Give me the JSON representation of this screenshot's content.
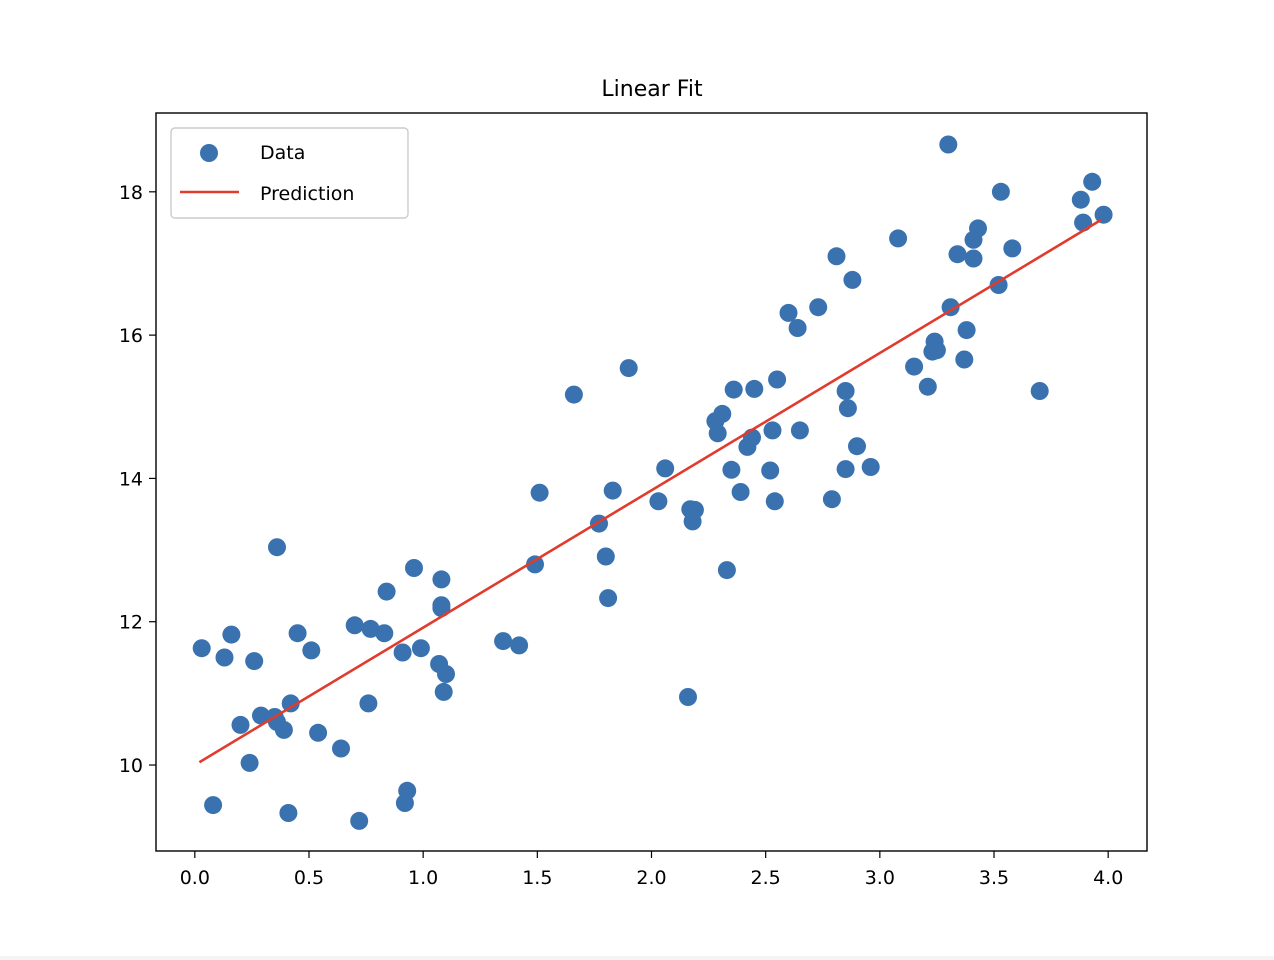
{
  "chart_data": {
    "type": "scatter",
    "title": "Linear Fit",
    "xlabel": "",
    "ylabel": "",
    "xlim": [
      -0.17,
      4.17
    ],
    "ylim": [
      8.8,
      19.1
    ],
    "xticks": [
      0.0,
      0.5,
      1.0,
      1.5,
      2.0,
      2.5,
      3.0,
      3.5,
      4.0
    ],
    "xtick_labels": [
      "0.0",
      "0.5",
      "1.0",
      "1.5",
      "2.0",
      "2.5",
      "3.0",
      "3.5",
      "4.0"
    ],
    "yticks": [
      10,
      12,
      14,
      16,
      18
    ],
    "ytick_labels": [
      "10",
      "12",
      "14",
      "16",
      "18"
    ],
    "grid": false,
    "legend": {
      "position": "upper-left",
      "entries": [
        "Data",
        "Prediction"
      ]
    },
    "series": [
      {
        "name": "Data",
        "kind": "scatter",
        "color": "#3a72b0",
        "points": [
          [
            0.03,
            11.63
          ],
          [
            0.08,
            9.44
          ],
          [
            0.13,
            11.5
          ],
          [
            0.16,
            11.82
          ],
          [
            0.2,
            10.56
          ],
          [
            0.24,
            10.03
          ],
          [
            0.26,
            11.45
          ],
          [
            0.29,
            10.69
          ],
          [
            0.35,
            10.67
          ],
          [
            0.36,
            13.04
          ],
          [
            0.36,
            10.6
          ],
          [
            0.39,
            10.49
          ],
          [
            0.41,
            9.33
          ],
          [
            0.42,
            10.86
          ],
          [
            0.45,
            11.84
          ],
          [
            0.51,
            11.6
          ],
          [
            0.54,
            10.45
          ],
          [
            0.64,
            10.23
          ],
          [
            0.7,
            11.95
          ],
          [
            0.72,
            9.22
          ],
          [
            0.76,
            10.86
          ],
          [
            0.77,
            11.9
          ],
          [
            0.83,
            11.84
          ],
          [
            0.84,
            12.42
          ],
          [
            0.91,
            11.57
          ],
          [
            0.92,
            9.47
          ],
          [
            0.93,
            9.64
          ],
          [
            0.96,
            12.75
          ],
          [
            0.99,
            11.63
          ],
          [
            1.07,
            11.41
          ],
          [
            1.08,
            12.59
          ],
          [
            1.08,
            12.23
          ],
          [
            1.08,
            12.19
          ],
          [
            1.09,
            11.02
          ],
          [
            1.1,
            11.27
          ],
          [
            1.35,
            11.73
          ],
          [
            1.42,
            11.67
          ],
          [
            1.49,
            12.8
          ],
          [
            1.51,
            13.8
          ],
          [
            1.66,
            15.17
          ],
          [
            1.77,
            13.37
          ],
          [
            1.8,
            12.91
          ],
          [
            1.81,
            12.33
          ],
          [
            1.83,
            13.83
          ],
          [
            1.9,
            15.54
          ],
          [
            2.03,
            13.68
          ],
          [
            2.06,
            14.14
          ],
          [
            2.16,
            10.95
          ],
          [
            2.17,
            13.57
          ],
          [
            2.18,
            13.4
          ],
          [
            2.19,
            13.56
          ],
          [
            2.28,
            14.8
          ],
          [
            2.29,
            14.63
          ],
          [
            2.31,
            14.9
          ],
          [
            2.33,
            12.72
          ],
          [
            2.35,
            14.12
          ],
          [
            2.36,
            15.24
          ],
          [
            2.39,
            13.81
          ],
          [
            2.42,
            14.44
          ],
          [
            2.44,
            14.57
          ],
          [
            2.45,
            15.25
          ],
          [
            2.52,
            14.11
          ],
          [
            2.53,
            14.67
          ],
          [
            2.54,
            13.68
          ],
          [
            2.55,
            15.38
          ],
          [
            2.6,
            16.31
          ],
          [
            2.64,
            16.1
          ],
          [
            2.65,
            14.67
          ],
          [
            2.73,
            16.39
          ],
          [
            2.79,
            13.71
          ],
          [
            2.81,
            17.1
          ],
          [
            2.85,
            14.13
          ],
          [
            2.85,
            15.22
          ],
          [
            2.86,
            14.98
          ],
          [
            2.88,
            16.77
          ],
          [
            2.9,
            14.45
          ],
          [
            2.96,
            14.16
          ],
          [
            3.08,
            17.35
          ],
          [
            3.15,
            15.56
          ],
          [
            3.21,
            15.28
          ],
          [
            3.23,
            15.77
          ],
          [
            3.24,
            15.91
          ],
          [
            3.25,
            15.79
          ],
          [
            3.3,
            18.66
          ],
          [
            3.31,
            16.39
          ],
          [
            3.34,
            17.13
          ],
          [
            3.37,
            15.66
          ],
          [
            3.38,
            16.07
          ],
          [
            3.41,
            17.07
          ],
          [
            3.41,
            17.33
          ],
          [
            3.43,
            17.49
          ],
          [
            3.52,
            16.7
          ],
          [
            3.53,
            18.0
          ],
          [
            3.58,
            17.21
          ],
          [
            3.7,
            15.22
          ],
          [
            3.88,
            17.89
          ],
          [
            3.89,
            17.57
          ],
          [
            3.93,
            18.14
          ],
          [
            3.98,
            17.68
          ]
        ]
      },
      {
        "name": "Prediction",
        "kind": "line",
        "color": "#e03b2d",
        "points": [
          [
            0.02,
            10.04
          ],
          [
            3.97,
            17.61
          ]
        ]
      }
    ]
  }
}
